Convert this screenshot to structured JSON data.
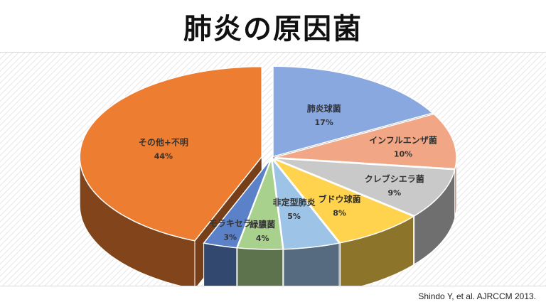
{
  "slide": {
    "title": "肺炎の原因菌",
    "citation": "Shindo Y, et al. AJRCCM 2013."
  },
  "chart_data": {
    "type": "pie",
    "title": "肺炎の原因菌",
    "style": "3d-exploded",
    "slices": [
      {
        "name": "肺炎球菌",
        "value": 17,
        "label": "17%",
        "color": "#8aa8e0"
      },
      {
        "name": "インフルエンザ菌",
        "value": 10,
        "label": "10%",
        "color": "#f1a785"
      },
      {
        "name": "クレブシエラ菌",
        "value": 9,
        "label": "9%",
        "color": "#c9c9c9"
      },
      {
        "name": "ブドウ球菌",
        "value": 8,
        "label": "8%",
        "color": "#ffd34e"
      },
      {
        "name": "非定型肺炎",
        "value": 5,
        "label": "5%",
        "color": "#9dc3e6"
      },
      {
        "name": "緑膿菌",
        "value": 4,
        "label": "4%",
        "color": "#a9d18e"
      },
      {
        "name": "モラキセラ",
        "value": 3,
        "label": "3%",
        "color": "#5b82c9"
      },
      {
        "name": "その他+不明",
        "value": 44,
        "label": "44%",
        "color": "#ed7d31"
      }
    ]
  }
}
